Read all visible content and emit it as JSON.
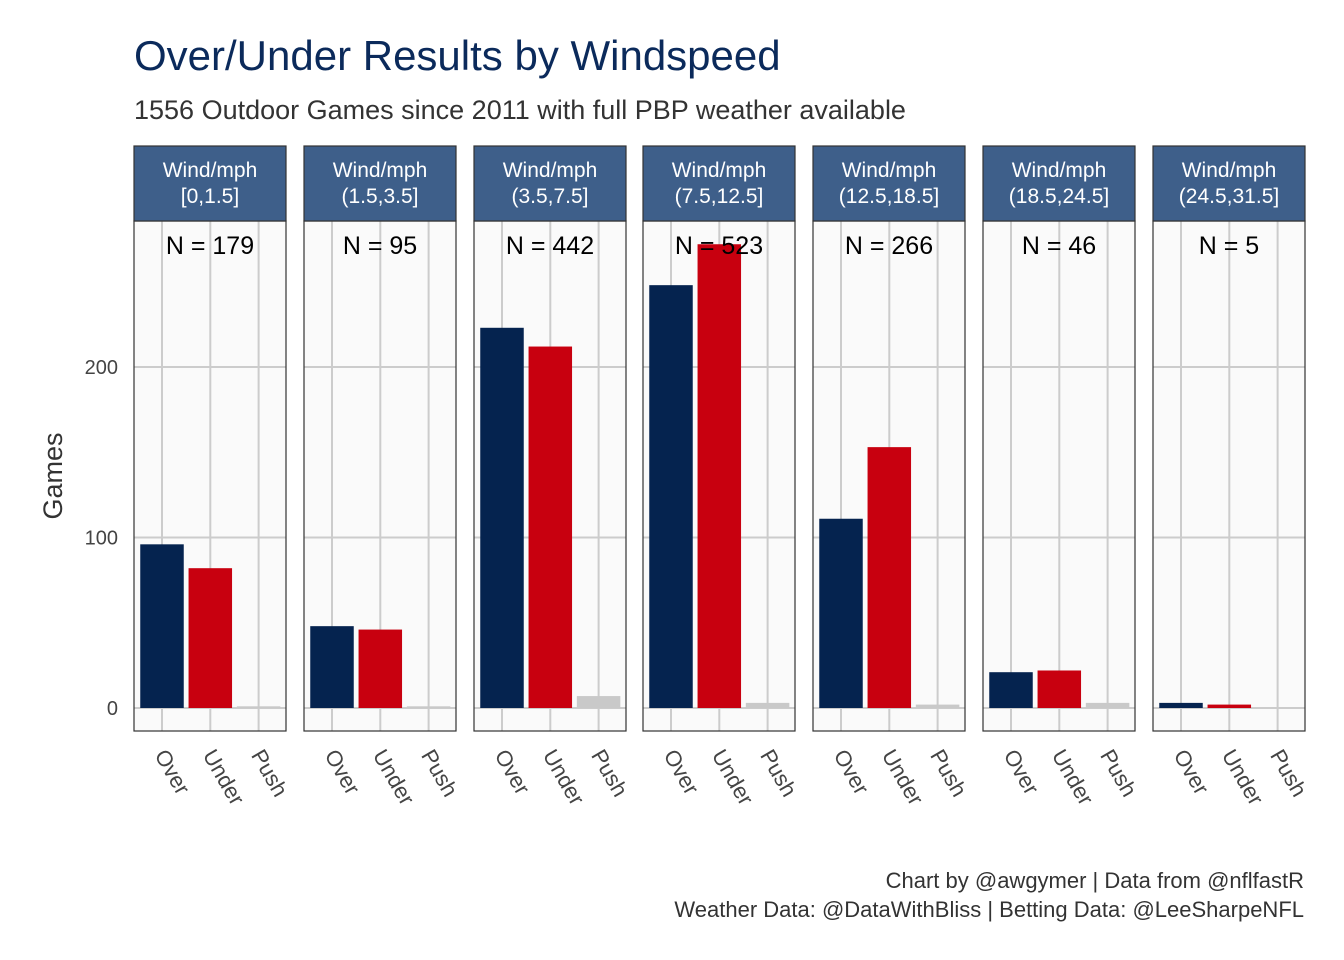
{
  "title": "Over/Under Results by Windspeed",
  "subtitle": "1556 Outdoor Games since 2011 with full PBP weather available",
  "caption": {
    "line1": "Chart by @awgymer | Data from @nflfastR",
    "line2": "Weather Data: @DataWithBliss | Betting Data: @LeeSharpeNFL"
  },
  "colors": {
    "Over": "#05234f",
    "Under": "#c8000f",
    "Push": "#c9c9c9",
    "strip_fill": "#3e5f8a",
    "panel_bg": "#fafafa",
    "grid": "#cccccc",
    "title": "#0b2a5b"
  },
  "chart_data": {
    "type": "bar",
    "facet_by": "Wind/mph",
    "ylabel": "Games",
    "xlabel": "",
    "ylim": [
      -13,
      300
    ],
    "yticks": [
      0,
      100,
      200
    ],
    "grid": true,
    "categories": [
      "Over",
      "Under",
      "Push"
    ],
    "panels": [
      {
        "strip": [
          "Wind/mph",
          "[0,1.5]"
        ],
        "n_label": "N = 179",
        "values": [
          96,
          82,
          1
        ]
      },
      {
        "strip": [
          "Wind/mph",
          "(1.5,3.5]"
        ],
        "n_label": "N = 95",
        "values": [
          48,
          46,
          1
        ]
      },
      {
        "strip": [
          "Wind/mph",
          "(3.5,7.5]"
        ],
        "n_label": "N = 442",
        "values": [
          223,
          212,
          7
        ]
      },
      {
        "strip": [
          "Wind/mph",
          "(7.5,12.5]"
        ],
        "n_label": "N = 523",
        "values": [
          248,
          272,
          3
        ]
      },
      {
        "strip": [
          "Wind/mph",
          "(12.5,18.5]"
        ],
        "n_label": "N = 266",
        "values": [
          111,
          153,
          2
        ]
      },
      {
        "strip": [
          "Wind/mph",
          "(18.5,24.5]"
        ],
        "n_label": "N = 46",
        "values": [
          21,
          22,
          3
        ]
      },
      {
        "strip": [
          "Wind/mph",
          "(24.5,31.5]"
        ],
        "n_label": "N = 5",
        "values": [
          3,
          2,
          0
        ]
      }
    ]
  }
}
